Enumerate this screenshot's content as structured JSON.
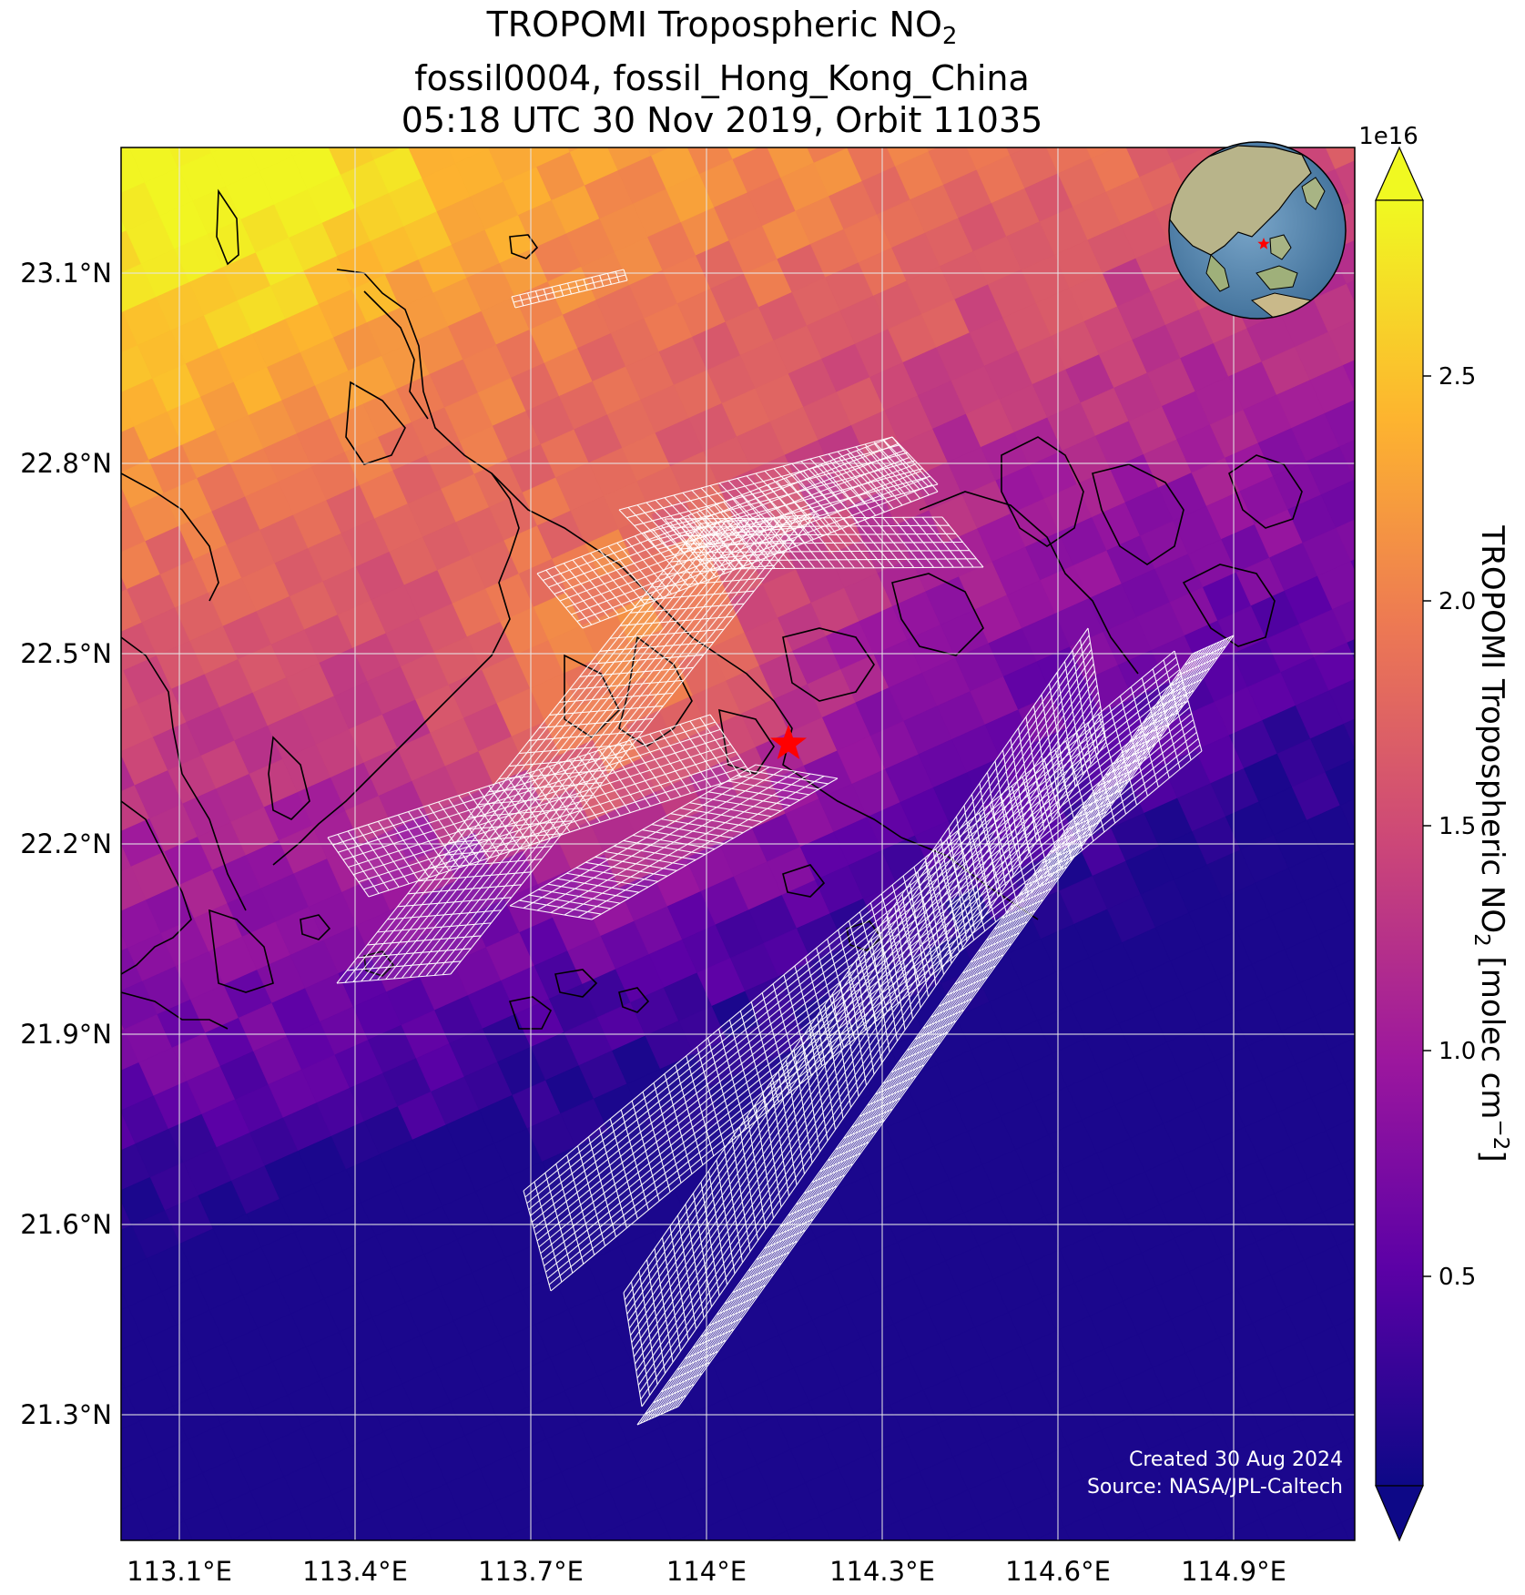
{
  "title": {
    "line1_prefix": "TROPOMI Tropospheric NO",
    "line1_sub": "2",
    "line2": "fossil0004, fossil_Hong_Kong_China",
    "line3": "05:18 UTC 30 Nov 2019, Orbit 11035"
  },
  "map": {
    "lon_ticks": [
      "113.1°E",
      "113.4°E",
      "113.7°E",
      "114°E",
      "114.3°E",
      "114.6°E",
      "114.9°E"
    ],
    "lat_ticks": [
      "23.1°N",
      "22.8°N",
      "22.5°N",
      "22.2°N",
      "21.9°N",
      "21.6°N",
      "21.3°N"
    ],
    "target_marker": "red-star",
    "inset_globe": "orthographic globe with red star at target",
    "credit_line1": "Created 30 Aug 2024",
    "credit_line2": "Source: NASA/JPL-Caltech"
  },
  "colorbar": {
    "label_prefix": "TROPOMI Tropospheric NO",
    "label_sub": "2",
    "label_mid": " [molec cm",
    "label_sup": "−2",
    "label_suffix": "]",
    "exponent": "1e16",
    "ticks": [
      "0.5",
      "1.0",
      "1.5",
      "2.0",
      "2.5"
    ],
    "colormap": "plasma",
    "colors": [
      "#0d0887",
      "#5c01a6",
      "#9c179e",
      "#cc4778",
      "#ed7953",
      "#fdb42f",
      "#f0f921"
    ]
  }
}
